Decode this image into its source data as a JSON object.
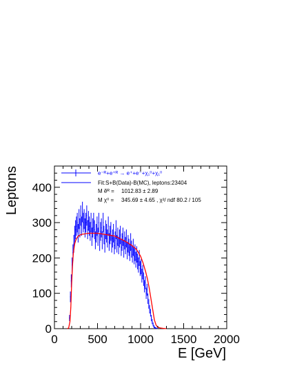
{
  "chart_data": {
    "type": "line",
    "title": "",
    "xlabel": "E [GeV]",
    "ylabel": "Leptons",
    "xlim": [
      0,
      2000
    ],
    "ylim": [
      0,
      460
    ],
    "x_ticks": [
      "0",
      "500",
      "1000",
      "1500",
      "2000"
    ],
    "y_ticks": [
      "0",
      "100",
      "200",
      "300",
      "400"
    ],
    "x_tick_values": [
      0,
      500,
      1000,
      1500,
      2000
    ],
    "y_tick_values": [
      0,
      100,
      200,
      300,
      400
    ],
    "grid": false,
    "legend_position": "top",
    "legend": {
      "data_label": "e⁻ᴿ+e⁺ᴿ → e⁺+e⁻+χ₁⁰+χ₁⁰",
      "fit_label": "Fit:S+B(Data)-B(MC), leptons:23404",
      "mass_e_label": "M ẽᴿ =",
      "mass_e_value": "1012.83 ±  2.89",
      "mass_chi_label": "M χ⁰ =",
      "mass_chi_value": "345.69 ±  4.65 , χ²/ ndf 80.2 / 105"
    },
    "colors": {
      "data": "#0000ff",
      "fit": "#ff0000",
      "axis": "#000000"
    },
    "series": [
      {
        "name": "e⁻ᴿ+e⁺ᴿ → e⁺+e⁻+χ₁⁰+χ₁⁰",
        "style": "histogram",
        "x": [
          175,
          185,
          195,
          205,
          215,
          225,
          235,
          245,
          255,
          265,
          275,
          285,
          295,
          305,
          315,
          325,
          335,
          345,
          355,
          365,
          375,
          385,
          395,
          405,
          415,
          425,
          435,
          445,
          455,
          465,
          475,
          485,
          495,
          505,
          515,
          525,
          535,
          545,
          555,
          565,
          575,
          585,
          595,
          605,
          615,
          625,
          635,
          645,
          655,
          665,
          675,
          685,
          695,
          705,
          715,
          725,
          735,
          745,
          755,
          765,
          775,
          785,
          795,
          805,
          815,
          825,
          835,
          845,
          855,
          865,
          875,
          885,
          895,
          905,
          915,
          925,
          935,
          945,
          955,
          965,
          975,
          985,
          995,
          1005,
          1015,
          1025,
          1035,
          1045,
          1055,
          1065,
          1075,
          1085,
          1095,
          1105,
          1115,
          1125,
          1135,
          1145,
          1155,
          1165,
          1175,
          1185,
          1195
        ],
        "values": [
          30,
          90,
          135,
          180,
          215,
          240,
          265,
          280,
          290,
          300,
          270,
          310,
          285,
          320,
          290,
          330,
          300,
          310,
          285,
          300,
          320,
          280,
          305,
          290,
          275,
          300,
          260,
          285,
          300,
          280,
          250,
          270,
          290,
          260,
          300,
          245,
          275,
          285,
          250,
          300,
          265,
          240,
          280,
          270,
          255,
          290,
          245,
          265,
          275,
          240,
          255,
          270,
          235,
          250,
          280,
          240,
          260,
          235,
          255,
          265,
          230,
          245,
          260,
          225,
          250,
          235,
          255,
          220,
          240,
          230,
          215,
          245,
          225,
          210,
          230,
          205,
          215,
          195,
          210,
          190,
          180,
          200,
          170,
          175,
          150,
          160,
          140,
          120,
          130,
          100,
          110,
          85,
          70,
          55,
          45,
          30,
          20,
          12,
          6,
          3,
          2,
          1,
          0
        ]
      },
      {
        "name": "Fit:S+B(Data)-B(MC), leptons:23404",
        "style": "line",
        "x": [
          150,
          165,
          180,
          190,
          200,
          210,
          220,
          235,
          250,
          270,
          290,
          320,
          350,
          400,
          450,
          500,
          550,
          600,
          650,
          700,
          750,
          800,
          850,
          900,
          950,
          1000,
          1030,
          1060,
          1080,
          1100,
          1120,
          1140,
          1160,
          1180,
          1200,
          1230,
          1260,
          1300
        ],
        "values": [
          0,
          2,
          20,
          60,
          130,
          180,
          215,
          240,
          252,
          260,
          264,
          267,
          268,
          270,
          270,
          270,
          268,
          266,
          264,
          262,
          256,
          250,
          243,
          235,
          225,
          205,
          185,
          160,
          140,
          115,
          85,
          55,
          25,
          10,
          4,
          2,
          1,
          0
        ]
      }
    ]
  }
}
